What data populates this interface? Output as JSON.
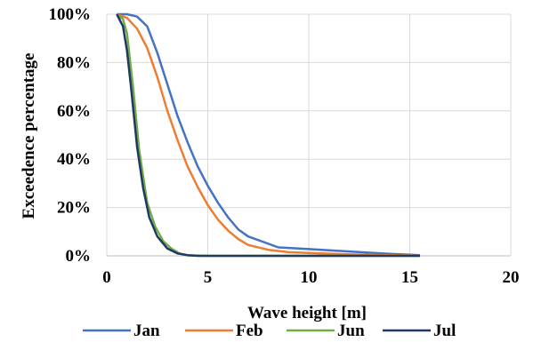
{
  "chart_data": {
    "type": "line",
    "xlabel": "Wave height [m]",
    "ylabel": "Exceedence percentage",
    "xlim": [
      0,
      20
    ],
    "ylim": [
      0,
      100
    ],
    "x_ticks": [
      0,
      5,
      10,
      15,
      20
    ],
    "y_ticks": [
      "0%",
      "20%",
      "40%",
      "60%",
      "80%",
      "100%"
    ],
    "y_tick_values": [
      0,
      20,
      40,
      60,
      80,
      100
    ],
    "grid": "vertical and horizontal",
    "legend_position": "bottom",
    "series": [
      {
        "name": "Jan",
        "color": "#4472C4",
        "points": [
          [
            0.5,
            100
          ],
          [
            1.0,
            100
          ],
          [
            1.5,
            99
          ],
          [
            2.0,
            95
          ],
          [
            2.5,
            84
          ],
          [
            3.0,
            71
          ],
          [
            3.5,
            58
          ],
          [
            4.0,
            47
          ],
          [
            4.5,
            37
          ],
          [
            5.0,
            29
          ],
          [
            5.5,
            22
          ],
          [
            6.0,
            16
          ],
          [
            6.5,
            11
          ],
          [
            7.0,
            8
          ],
          [
            8.5,
            3.5
          ],
          [
            10,
            2.8
          ],
          [
            12,
            1.8
          ],
          [
            14,
            0.8
          ],
          [
            15.5,
            0.3
          ]
        ]
      },
      {
        "name": "Feb",
        "color": "#ED7D31",
        "points": [
          [
            0.5,
            100
          ],
          [
            1.0,
            98.5
          ],
          [
            1.5,
            94
          ],
          [
            2.0,
            86
          ],
          [
            2.5,
            74
          ],
          [
            3.0,
            60
          ],
          [
            3.5,
            48
          ],
          [
            4.0,
            37
          ],
          [
            4.5,
            28.5
          ],
          [
            5.0,
            21
          ],
          [
            5.5,
            15
          ],
          [
            6.0,
            10.5
          ],
          [
            6.5,
            7
          ],
          [
            7.0,
            4.5
          ],
          [
            8.0,
            2.5
          ],
          [
            9.0,
            1.5
          ],
          [
            10,
            1.2
          ],
          [
            12,
            0.6
          ],
          [
            14,
            0.3
          ],
          [
            15.5,
            0.1
          ]
        ]
      },
      {
        "name": "Jun",
        "color": "#70AD47",
        "points": [
          [
            0.5,
            100
          ],
          [
            0.8,
            98
          ],
          [
            1.0,
            92
          ],
          [
            1.3,
            70
          ],
          [
            1.6,
            44
          ],
          [
            2.0,
            22
          ],
          [
            2.4,
            12
          ],
          [
            2.8,
            6
          ],
          [
            3.2,
            3
          ],
          [
            3.6,
            1
          ],
          [
            4.0,
            0.2
          ],
          [
            5.0,
            0
          ],
          [
            15.5,
            0
          ]
        ]
      },
      {
        "name": "Jul",
        "color": "#203864",
        "points": [
          [
            0.5,
            100
          ],
          [
            0.8,
            95
          ],
          [
            1.0,
            85
          ],
          [
            1.2,
            70
          ],
          [
            1.5,
            45
          ],
          [
            1.8,
            28
          ],
          [
            2.1,
            16
          ],
          [
            2.5,
            8
          ],
          [
            3.0,
            3
          ],
          [
            3.5,
            1
          ],
          [
            4.0,
            0.3
          ],
          [
            4.5,
            0
          ],
          [
            15.5,
            0
          ]
        ]
      }
    ]
  }
}
